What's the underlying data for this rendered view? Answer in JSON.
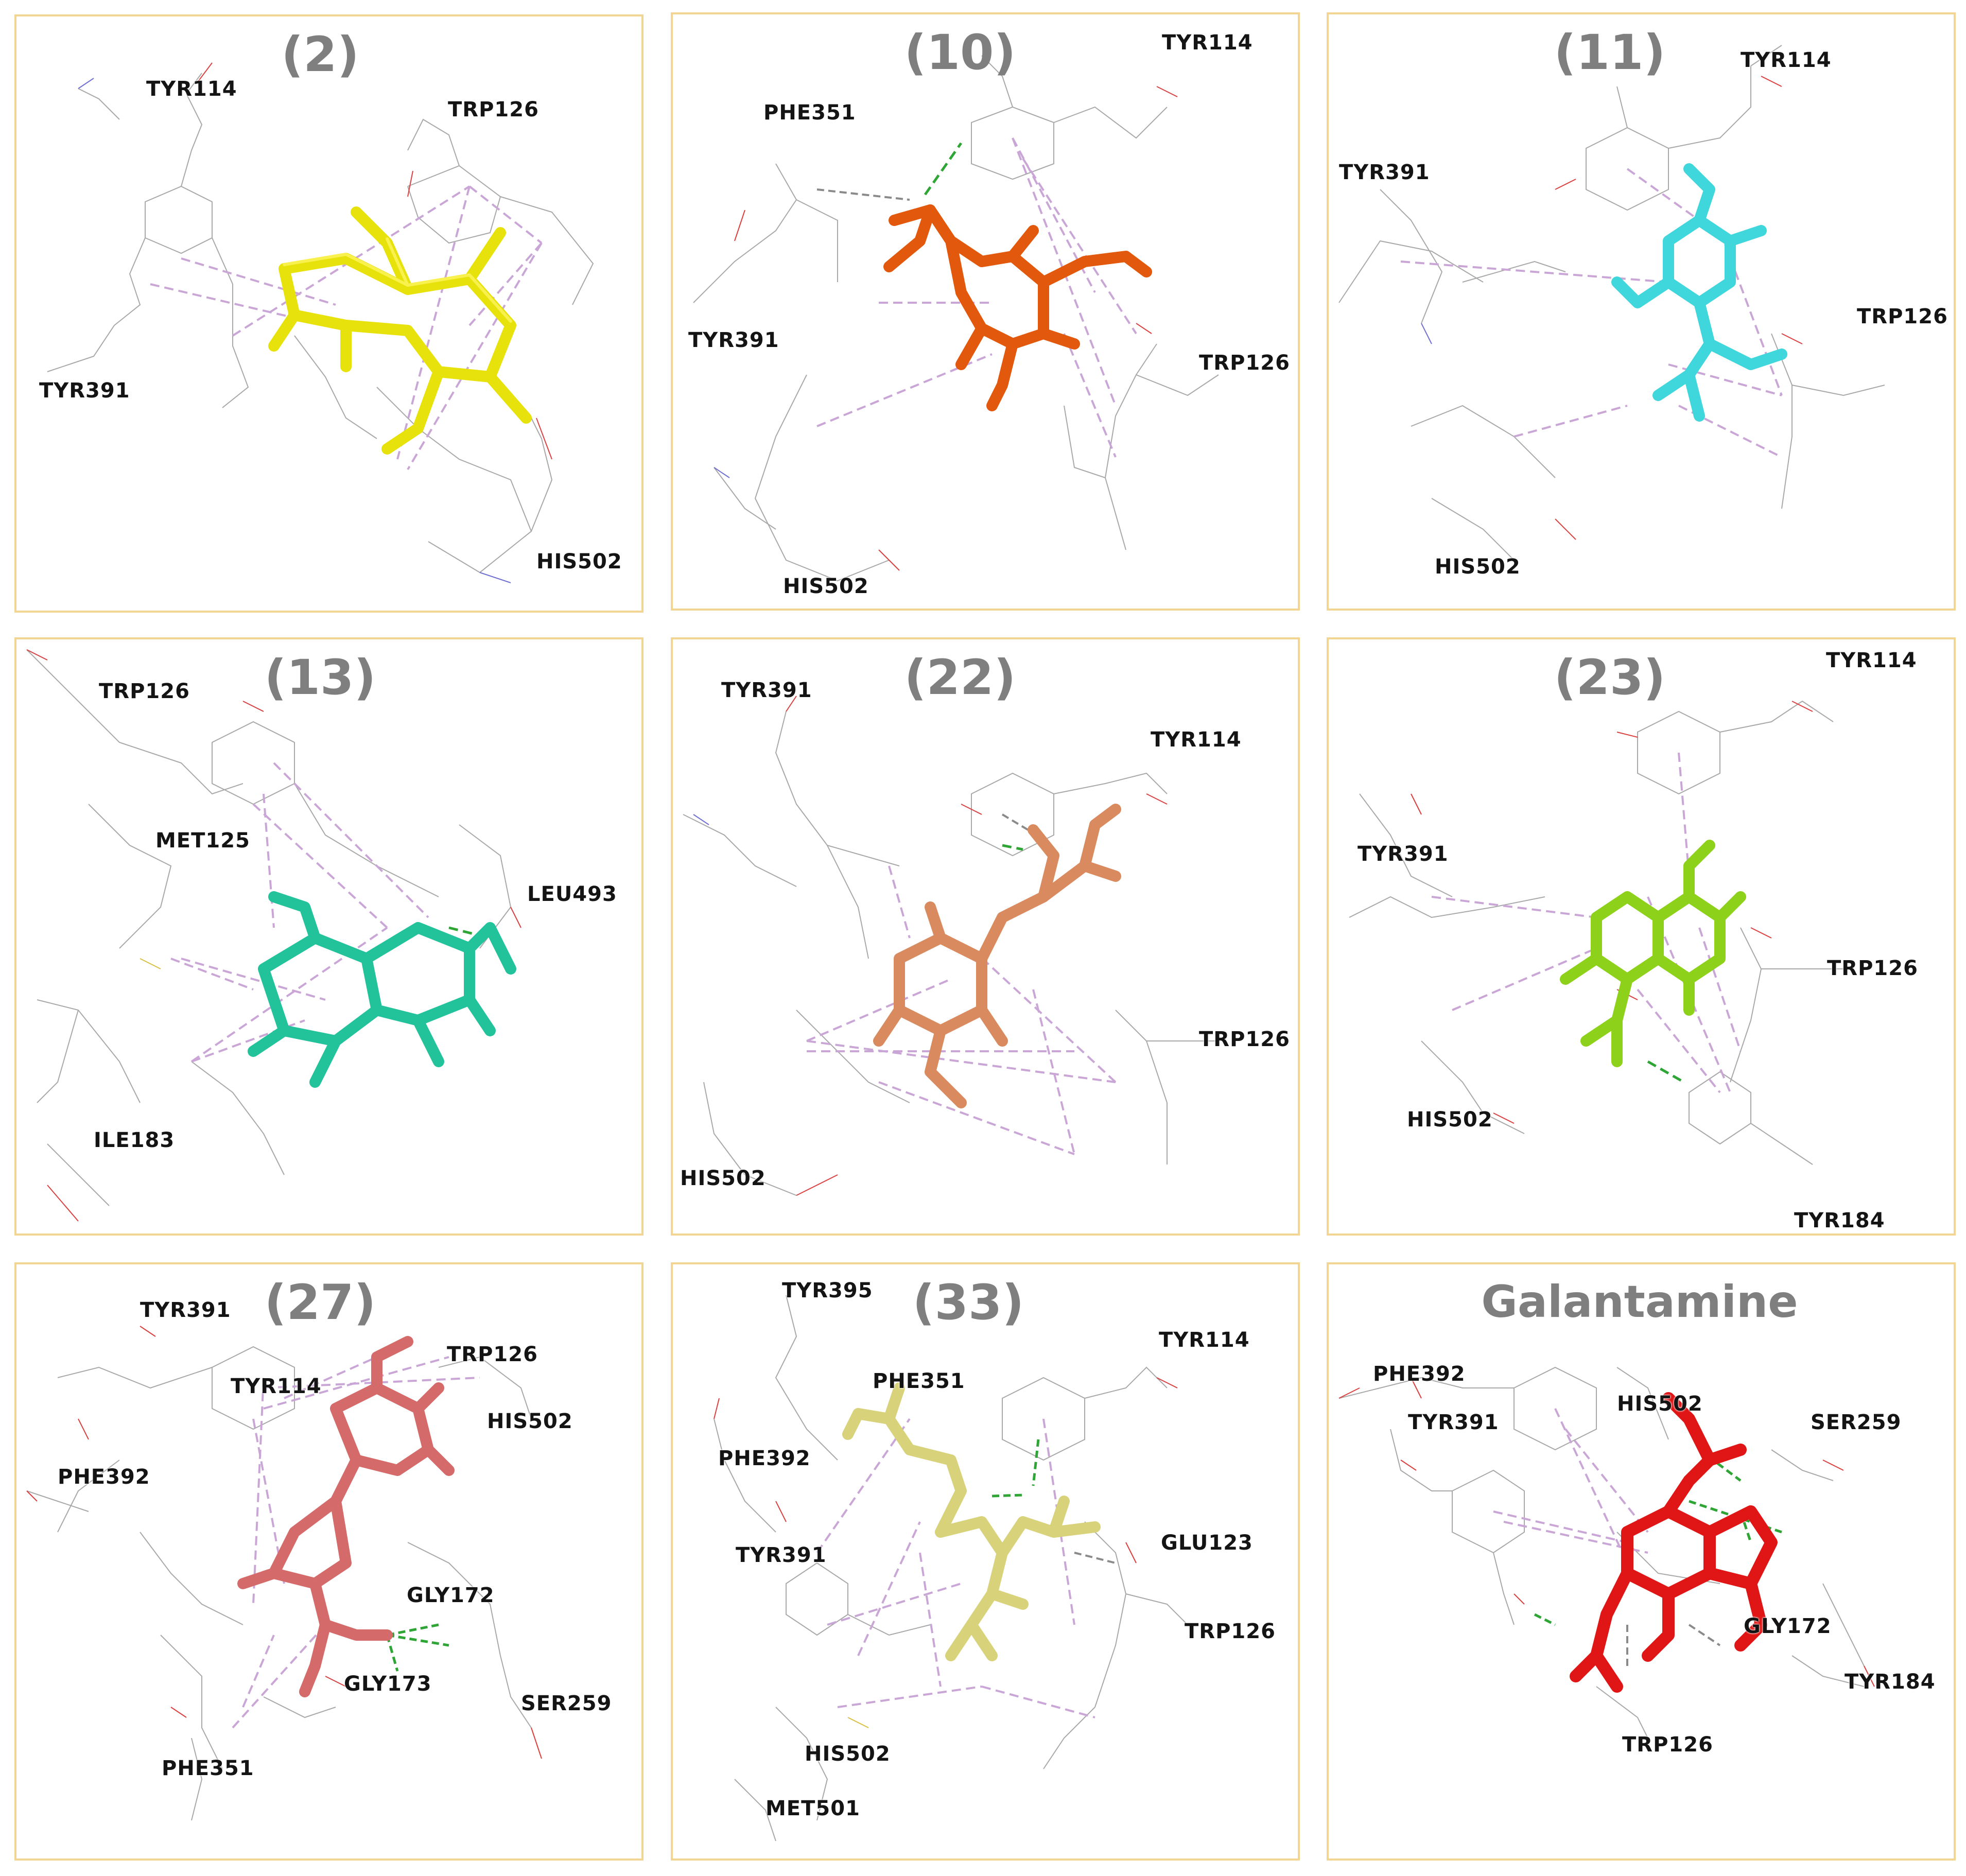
{
  "colors": {
    "border": "#f2d592",
    "title": "#7f7f7f",
    "label": "#141414",
    "wire": "#a8a8a8",
    "interaction_pi": "#c9a6d6",
    "interaction_hbond": "#2fa536",
    "interaction_ch": "#8a8a8a"
  },
  "panels": [
    {
      "title": "(2)",
      "ligand_color": "#e8e20c",
      "residues": [
        "TYR114",
        "TRP126",
        "TYR391",
        "HIS502"
      ]
    },
    {
      "title": "(10)",
      "ligand_color": "#e2590d",
      "residues": [
        "TYR114",
        "PHE351",
        "TYR391",
        "TRP126",
        "HIS502"
      ]
    },
    {
      "title": "(11)",
      "ligand_color": "#3fd6dc",
      "residues": [
        "TYR114",
        "TYR391",
        "TRP126",
        "HIS502"
      ]
    },
    {
      "title": "(13)",
      "ligand_color": "#22c29a",
      "residues": [
        "TRP126",
        "MET125",
        "LEU493",
        "ILE183"
      ]
    },
    {
      "title": "(22)",
      "ligand_color": "#d98a5e",
      "residues": [
        "TYR391",
        "TYR114",
        "TRP126",
        "HIS502"
      ]
    },
    {
      "title": "(23)",
      "ligand_color": "#8ed11b",
      "residues": [
        "TYR114",
        "TYR391",
        "TRP126",
        "HIS502",
        "TYR184"
      ]
    },
    {
      "title": "(27)",
      "ligand_color": "#d46a6a",
      "residues": [
        "TYR391",
        "TRP126",
        "TYR114",
        "HIS502",
        "PHE392",
        "GLY172",
        "GLY173",
        "SER259",
        "PHE351"
      ]
    },
    {
      "title": "(33)",
      "ligand_color": "#d8d27a",
      "residues": [
        "TYR395",
        "TYR114",
        "PHE351",
        "PHE392",
        "GLU123",
        "TYR391",
        "TRP126",
        "HIS502",
        "MET501"
      ]
    },
    {
      "title": "Galantamine",
      "ligand_color": "#e01616",
      "residues": [
        "PHE392",
        "HIS502",
        "SER259",
        "TYR391",
        "GLY172",
        "TYR184",
        "TRP126"
      ]
    }
  ]
}
